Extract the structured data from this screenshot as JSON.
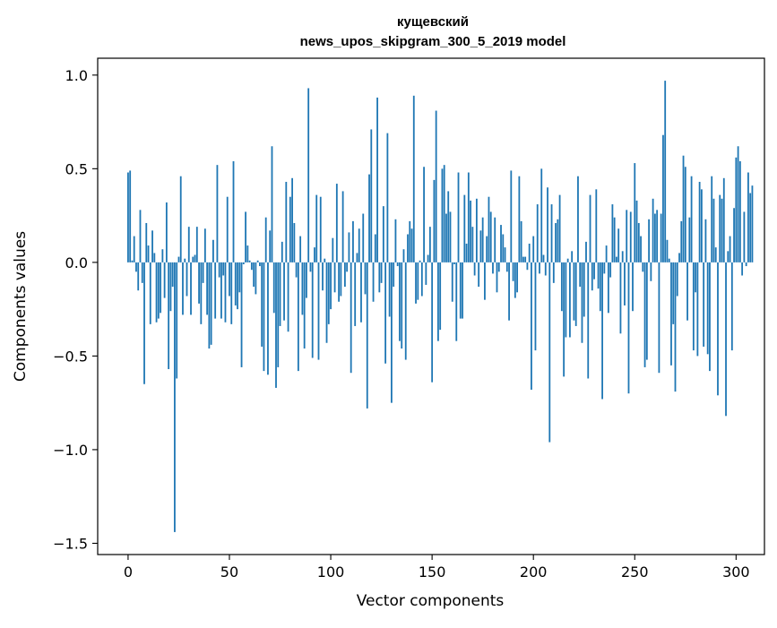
{
  "chart_data": {
    "type": "bar",
    "title_line1": "кущевский",
    "title_line2": "news_upos_skipgram_300_5_2019 model",
    "xlabel": "Vector components",
    "ylabel": "Components values",
    "xlim": [
      -15,
      314
    ],
    "ylim": [
      -1.56,
      1.09
    ],
    "xticks": [
      0,
      50,
      100,
      150,
      200,
      250,
      300
    ],
    "yticks": [
      1.0,
      0.5,
      0.0,
      -0.5,
      -1.0,
      -1.5
    ],
    "ytick_labels": [
      "1.0",
      "0.5",
      "0.0",
      "−0.5",
      "−1.0",
      "−1.5"
    ],
    "bar_color": "#1f77b4",
    "grid": false,
    "values": [
      0.48,
      0.49,
      0.01,
      0.14,
      -0.05,
      -0.15,
      0.28,
      -0.11,
      -0.65,
      0.21,
      0.09,
      -0.33,
      0.17,
      0.05,
      -0.32,
      -0.3,
      -0.27,
      0.07,
      -0.19,
      0.32,
      -0.57,
      -0.26,
      -0.13,
      -1.44,
      -0.62,
      0.03,
      0.46,
      -0.28,
      0.02,
      -0.18,
      0.19,
      -0.28,
      0.03,
      0.04,
      0.19,
      -0.22,
      -0.33,
      -0.11,
      0.18,
      -0.28,
      -0.46,
      -0.44,
      0.12,
      -0.3,
      0.52,
      -0.08,
      -0.3,
      -0.07,
      -0.32,
      0.35,
      -0.18,
      -0.33,
      0.54,
      -0.23,
      -0.25,
      -0.16,
      -0.56,
      -0.01,
      0.27,
      0.09,
      0.01,
      -0.04,
      -0.13,
      -0.17,
      0.01,
      -0.02,
      -0.45,
      -0.58,
      0.24,
      -0.6,
      0.17,
      0.62,
      -0.27,
      -0.67,
      -0.56,
      -0.34,
      0.11,
      -0.31,
      0.43,
      -0.37,
      0.35,
      0.45,
      0.21,
      -0.08,
      -0.58,
      0.14,
      -0.28,
      -0.46,
      -0.19,
      0.93,
      -0.05,
      -0.51,
      0.08,
      0.36,
      -0.52,
      0.35,
      -0.15,
      0.02,
      -0.43,
      -0.33,
      -0.25,
      0.13,
      -0.16,
      0.42,
      -0.21,
      -0.18,
      0.38,
      -0.13,
      -0.05,
      0.16,
      -0.59,
      0.22,
      -0.34,
      0.05,
      0.18,
      -0.32,
      0.26,
      -0.17,
      -0.78,
      0.47,
      0.71,
      -0.21,
      0.15,
      0.88,
      -0.16,
      -0.11,
      0.3,
      -0.54,
      0.69,
      -0.29,
      -0.75,
      -0.13,
      0.23,
      -0.02,
      -0.42,
      -0.46,
      0.07,
      -0.52,
      0.15,
      0.22,
      0.18,
      0.89,
      -0.22,
      -0.2,
      0.01,
      -0.18,
      0.51,
      -0.12,
      0.04,
      0.19,
      -0.64,
      0.44,
      0.81,
      -0.42,
      -0.36,
      0.5,
      0.52,
      0.26,
      0.38,
      0.27,
      -0.21,
      -0.01,
      -0.42,
      0.48,
      -0.3,
      -0.3,
      0.36,
      0.1,
      0.48,
      0.33,
      0.19,
      -0.07,
      0.34,
      -0.13,
      0.17,
      0.24,
      -0.2,
      0.14,
      0.35,
      0.27,
      -0.06,
      0.24,
      -0.16,
      -0.05,
      0.2,
      0.15,
      0.08,
      -0.05,
      -0.31,
      0.49,
      -0.1,
      -0.19,
      -0.16,
      0.46,
      0.22,
      0.03,
      0.03,
      -0.04,
      0.1,
      -0.68,
      0.14,
      -0.47,
      0.31,
      -0.06,
      0.5,
      0.04,
      -0.07,
      0.4,
      -0.96,
      0.31,
      -0.11,
      0.21,
      0.23,
      0.36,
      -0.26,
      -0.61,
      -0.4,
      0.02,
      -0.4,
      0.06,
      -0.31,
      -0.34,
      0.46,
      -0.13,
      -0.43,
      -0.29,
      0.11,
      -0.62,
      0.36,
      -0.15,
      -0.09,
      0.39,
      -0.14,
      -0.26,
      -0.73,
      -0.06,
      0.09,
      -0.27,
      -0.08,
      0.31,
      0.24,
      0.03,
      0.18,
      -0.38,
      0.06,
      -0.23,
      0.28,
      -0.7,
      0.27,
      -0.26,
      0.53,
      0.33,
      0.21,
      0.14,
      -0.05,
      -0.56,
      -0.52,
      0.23,
      -0.1,
      0.34,
      0.26,
      0.28,
      -0.59,
      0.26,
      0.68,
      0.97,
      0.12,
      0.02,
      -0.55,
      -0.33,
      -0.69,
      -0.18,
      0.05,
      0.22,
      0.57,
      0.51,
      -0.31,
      0.24,
      0.46,
      -0.47,
      -0.16,
      -0.5,
      0.43,
      0.39,
      -0.45,
      0.23,
      -0.49,
      -0.58,
      0.46,
      0.34,
      0.08,
      -0.71,
      0.36,
      0.34,
      0.45,
      -0.82,
      0.06,
      0.14,
      -0.47,
      0.29,
      0.56,
      0.62,
      0.54,
      -0.07,
      0.27,
      -0.02,
      0.48,
      0.37,
      0.41
    ]
  }
}
